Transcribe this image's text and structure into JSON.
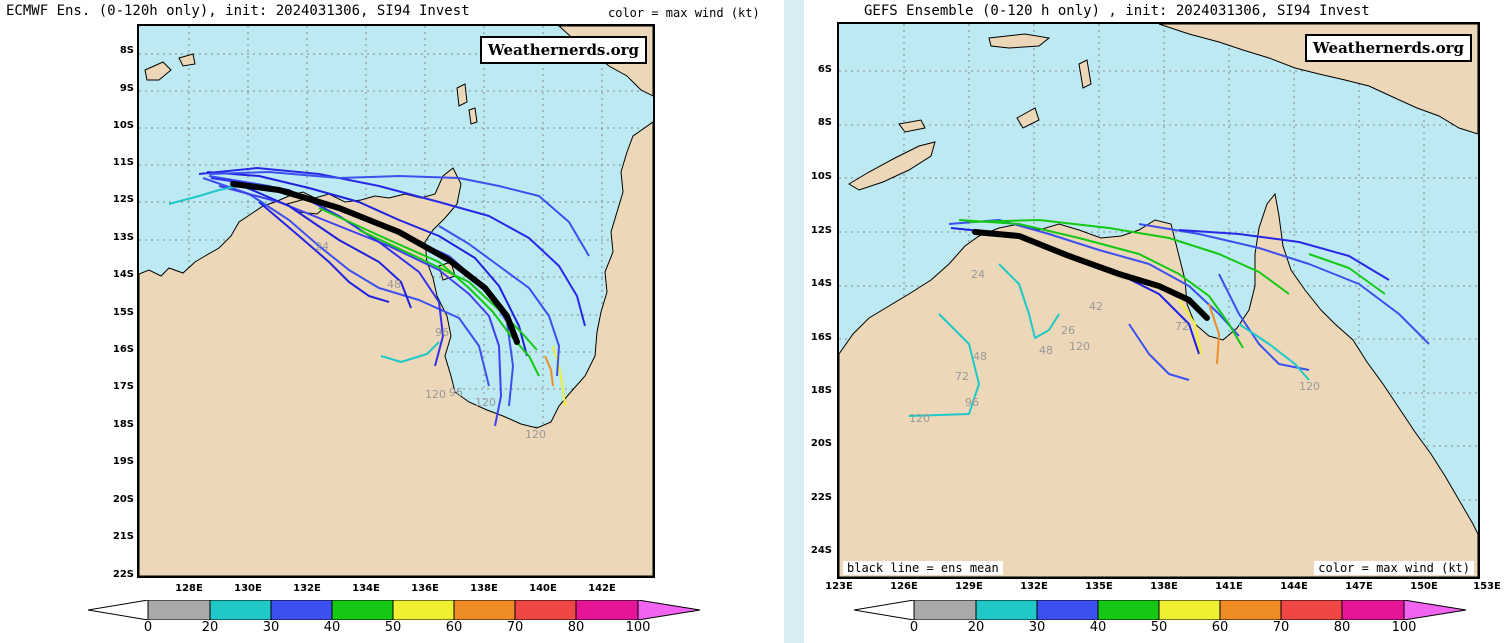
{
  "left": {
    "title": "ECMWF Ens. (0-120h only), init: 2024031306, SI94 Invest",
    "subtitle": "color = max wind (kt)",
    "logo": "Weathernerds.org",
    "lat_labels": [
      "8S",
      "9S",
      "10S",
      "11S",
      "12S",
      "13S",
      "14S",
      "15S",
      "16S",
      "17S",
      "18S",
      "19S",
      "20S",
      "21S",
      "22S"
    ],
    "lon_labels": [
      "128E",
      "130E",
      "132E",
      "134E",
      "136E",
      "138E",
      "140E",
      "142E"
    ],
    "hour_labels": [
      "24",
      "48",
      "120",
      "96",
      "120",
      "120",
      "96"
    ]
  },
  "right": {
    "title": "GEFS Ensemble (0-120 h only) , init: 2024031306, SI94 Invest",
    "logo": "Weathernerds.org",
    "lat_labels": [
      "6S",
      "8S",
      "10S",
      "12S",
      "14S",
      "16S",
      "18S",
      "20S",
      "22S",
      "24S"
    ],
    "lon_labels": [
      "123E",
      "126E",
      "129E",
      "132E",
      "135E",
      "138E",
      "141E",
      "144E",
      "147E",
      "150E",
      "153E"
    ],
    "note_left": "black line = ens mean",
    "note_right": "color = max wind (kt)",
    "hour_labels": [
      "24",
      "48",
      "72",
      "96",
      "120",
      "48",
      "120",
      "72",
      "120",
      "42",
      "26"
    ]
  },
  "colorbar": {
    "labels": [
      "0",
      "20",
      "30",
      "40",
      "50",
      "60",
      "70",
      "80",
      "100"
    ],
    "colors": [
      "#a9a9a9",
      "#20c8c8",
      "#3c50f0",
      "#14c814",
      "#f0f032",
      "#f08c28",
      "#f04646",
      "#e61496",
      "#f064f0"
    ]
  },
  "colors": {
    "ocean": "#bdeaf2",
    "land": "#ecd8b8",
    "mean_track": "#000000"
  }
}
